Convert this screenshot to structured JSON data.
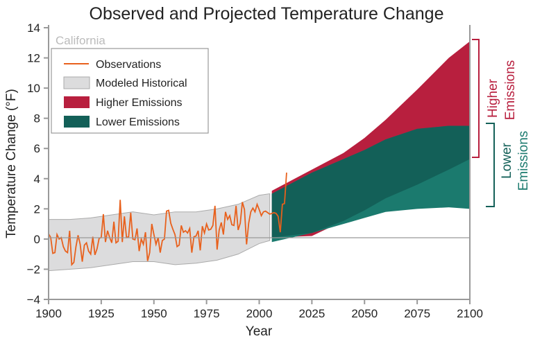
{
  "chart_data": {
    "type": "area",
    "title": "Observed and Projected Temperature Change",
    "region_label": "California",
    "xlabel": "Year",
    "ylabel": "Temperature Change (°F)",
    "xlim": [
      1900,
      2100
    ],
    "ylim": [
      -4,
      14
    ],
    "xticks": [
      1900,
      1925,
      1950,
      1975,
      2000,
      2025,
      2050,
      2075,
      2100
    ],
    "yticks": [
      -4,
      -2,
      0,
      2,
      4,
      6,
      8,
      10,
      12,
      14
    ],
    "grid": false,
    "legend_position": "top-left",
    "legend": [
      "Observations",
      "Modeled Historical",
      "Higher Emissions",
      "Lower Emissions"
    ],
    "annotations": {
      "higher": [
        "Higher",
        "Emissions"
      ],
      "lower": [
        "Lower",
        "Emissions"
      ]
    },
    "colors": {
      "observations": "#e8601c",
      "modeled_historical": "#dcdcdd",
      "higher": "#b81f3e",
      "lower": "#136058",
      "lower_only": "#1b7a6e",
      "higher_bracket": "#b81f3e",
      "lower_bracket": "#136058"
    },
    "modeled_historical": {
      "x": [
        1900,
        1910,
        1920,
        1930,
        1940,
        1950,
        1960,
        1970,
        1980,
        1990,
        2000,
        2005
      ],
      "upper": [
        1.3,
        1.3,
        1.4,
        1.6,
        1.8,
        1.6,
        1.8,
        1.8,
        2.0,
        2.3,
        2.9,
        3.0
      ],
      "lower": [
        -2.1,
        -2.0,
        -1.9,
        -1.7,
        -1.5,
        -1.5,
        -1.7,
        -1.6,
        -1.4,
        -1.0,
        -0.3,
        -0.1
      ]
    },
    "higher_emissions": {
      "x": [
        2006,
        2025,
        2040,
        2050,
        2060,
        2075,
        2090,
        2100
      ],
      "upper": [
        3.2,
        4.6,
        5.7,
        6.7,
        7.9,
        9.9,
        12.0,
        13.1
      ],
      "lower": [
        0.1,
        0.2,
        1.2,
        1.9,
        2.7,
        3.6,
        4.6,
        5.3
      ]
    },
    "lower_emissions": {
      "x": [
        2006,
        2025,
        2040,
        2050,
        2060,
        2075,
        2090,
        2100
      ],
      "upper": [
        3.0,
        4.4,
        5.3,
        5.9,
        6.6,
        7.3,
        7.5,
        7.5
      ],
      "lower": [
        -0.2,
        0.4,
        1.0,
        1.4,
        1.8,
        2.0,
        2.1,
        2.0
      ]
    },
    "observations": {
      "x_start": 1900,
      "values": [
        0.35,
        0.1,
        -0.95,
        -0.9,
        0.3,
        0,
        0.1,
        -0.5,
        -0.8,
        -0.9,
        0.55,
        -1.7,
        -1.55,
        -0.5,
        0.25,
        -0.35,
        -1.5,
        -0.4,
        -0.25,
        -0.8,
        -1.0,
        0.15,
        -1.05,
        -0.65,
        0.05,
        0.1,
        1.65,
        -0.2,
        0.55,
        0.1,
        -0.25,
        1.15,
        -0.25,
        -0.15,
        2.6,
        -0.2,
        1.5,
        0.1,
        0.15,
        1.75,
        0,
        -0.05,
        0.7,
        -0.8,
        0,
        -0.35,
        0.45,
        -1.45,
        -0.9,
        1.0,
        0.3,
        -0.35,
        0.1,
        -0.9,
        -0.1,
        0,
        1.85,
        1.9,
        1.05,
        0.65,
        0.3,
        -0.5,
        -0.4,
        0.9,
        0.45,
        0.55,
        0.4,
        0.7,
        -0.9,
        0.15,
        0.2,
        0.55,
        -0.75,
        0.85,
        0.4,
        1.0,
        0.6,
        0.65,
        0.9,
        2.2,
        -0.7,
        0.6,
        1.1,
        0.3,
        1.8,
        1.3,
        1.55,
        0.95,
        0.9,
        2.2,
        0.6,
        1.05,
        2.45,
        1.95,
        -0.35,
        1.05,
        1.8,
        2.05,
        1.8,
        2.3,
        1.95,
        1.55,
        1.8,
        1.85,
        1.75,
        1.65,
        1.7,
        1.75,
        1.7,
        1.5,
        0.45,
        2.3,
        2.35,
        4.4
      ]
    }
  }
}
